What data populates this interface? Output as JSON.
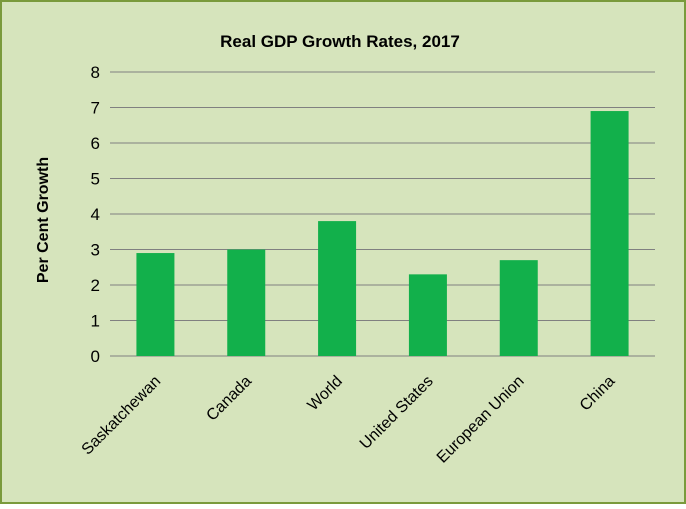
{
  "chart_data": {
    "type": "bar",
    "title": "Real GDP Growth Rates, 2017",
    "xlabel": "",
    "ylabel": "Per Cent Growth",
    "categories": [
      "Saskatchewan",
      "Canada",
      "World",
      "United States",
      "European Union",
      "China"
    ],
    "values": [
      2.9,
      3.0,
      3.8,
      2.3,
      2.7,
      6.9
    ],
    "ylim": [
      0,
      8
    ],
    "yticks": [
      "0",
      "1",
      "2",
      "3",
      "4",
      "5",
      "6",
      "7",
      "8"
    ],
    "grid": true,
    "legend": "none",
    "colors": {
      "background": "#d6e4bc",
      "border": "#7a9a3c",
      "bar": "#12b04b",
      "gridline": "#808080",
      "text": "#000000"
    }
  }
}
